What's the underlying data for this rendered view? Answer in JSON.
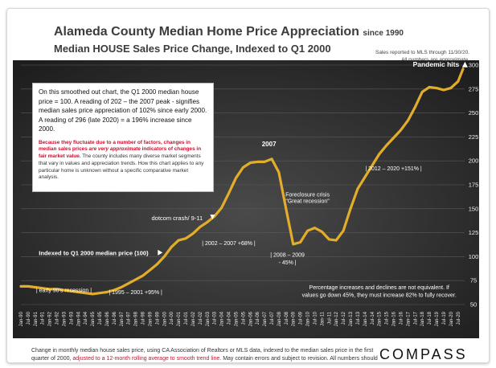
{
  "header": {
    "title": "Alameda County Median Home Price Appreciation",
    "title_suffix": "since 1990",
    "subtitle": "Median HOUSE Sales Price Change, Indexed to Q1 2000",
    "note_line1": "Sales reported to MLS through 11/30/20.",
    "note_line2": "All numbers are approximate."
  },
  "info_box": {
    "para1": "On this smoothed out chart, the Q1 2000 median house price = 100. A reading of 202 – the 2007 peak - signifies median sales price appreciation of 102% since early 2000.  A reading of 296 (late 2020) = a 196% increase since 2000.",
    "para2_red": "Because they fluctuate due to a number of factors, changes in median sales prices",
    "para2_red_italic": "are very approximate",
    "para2_red_tail": "indicators of changes in fair market value.",
    "para2_rest": "The county includes many diverse market segments that vary in values and appreciation trends. How this chart applies to any particular home is unknown without a specific comparative market analysis."
  },
  "footer": {
    "text_a": "Change in monthly median house sales price, using CA Association of Realtors or MLS data, indexed to the median sales price in the first quarter of 2000,",
    "text_red": "adjusted to a 12-month rolling average to smooth trend line.",
    "text_b": "May contain errors and subject to revision. All numbers should be considered very approximate."
  },
  "brand": {
    "logo_text": "COMPASS"
  },
  "colors": {
    "line": "#e2ad2a",
    "background": "#2f2f2f",
    "accent_red": "#c8102e"
  },
  "chart_data": {
    "type": "line",
    "title": "Alameda County Median Home Price Appreciation since 1990",
    "subtitle": "Median HOUSE Sales Price Change, Indexed to Q1 2000",
    "ylabel": "",
    "xlabel": "",
    "ylim": [
      50,
      300
    ],
    "y_ticks": [
      50,
      75,
      100,
      125,
      150,
      175,
      200,
      225,
      250,
      275,
      300
    ],
    "x_tick_labels": [
      "Jan-90",
      "Jul-90",
      "Jan-91",
      "Jul-91",
      "Jan-92",
      "Jul-92",
      "Jan-93",
      "Jul-93",
      "Jan-94",
      "Jul-94",
      "Jan-95",
      "Jul-95",
      "Jan-96",
      "Jul-96",
      "Jan-97",
      "Jul-97",
      "Jan-98",
      "Jul-98",
      "Jan-99",
      "Jul-99",
      "Jan-00",
      "Jul-00",
      "Jan-01",
      "Jul-01",
      "Jan-02",
      "Jul-02",
      "Jan-03",
      "Jul-03",
      "Jan-04",
      "Jul-04",
      "Jan-05",
      "Jul-05",
      "Jan-06",
      "Jul-06",
      "Jan-07",
      "Jul-07",
      "Jan-08",
      "Jul-08",
      "Jan-09",
      "Jul-09",
      "Jan-10",
      "Jul-10",
      "Jan-11",
      "Jul-11",
      "Jan-12",
      "Jul-12",
      "Jan-13",
      "Jul-13",
      "Jan-14",
      "Jul-14",
      "Jan-15",
      "Jul-15",
      "Jan-16",
      "Jul-16",
      "Jan-17",
      "Jul-17",
      "Jan-18",
      "Jul-18",
      "Jan-19",
      "Jul-19",
      "Jan-20",
      "Jul-20"
    ],
    "series": [
      {
        "name": "Median house price index (Q1 2000 = 100)",
        "x": [
          1990,
          1990.5,
          1991,
          1991.5,
          1992,
          1992.5,
          1993,
          1993.5,
          1994,
          1994.5,
          1995,
          1995.5,
          1996,
          1996.5,
          1997,
          1997.5,
          1998,
          1998.5,
          1999,
          1999.5,
          2000,
          2000.5,
          2001,
          2001.5,
          2002,
          2002.5,
          2003,
          2003.5,
          2004,
          2004.5,
          2005,
          2005.5,
          2006,
          2006.5,
          2007,
          2007.5,
          2008,
          2008.5,
          2009,
          2009.5,
          2010,
          2010.5,
          2011,
          2011.5,
          2012,
          2012.5,
          2013,
          2013.5,
          2014,
          2014.5,
          2015,
          2015.5,
          2016,
          2016.5,
          2017,
          2017.5,
          2018,
          2018.5,
          2019,
          2019.5,
          2020,
          2020.5,
          2020.85
        ],
        "values": [
          69,
          69,
          68,
          67,
          66,
          66,
          65,
          64,
          63,
          62,
          61,
          62,
          63,
          65,
          68,
          72,
          76,
          80,
          86,
          92,
          100,
          110,
          117,
          119,
          124,
          131,
          136,
          142,
          151,
          166,
          182,
          193,
          198,
          199,
          199,
          202,
          188,
          150,
          113,
          115,
          127,
          130,
          126,
          118,
          117,
          127,
          150,
          171,
          183,
          195,
          207,
          216,
          224,
          232,
          242,
          256,
          272,
          277,
          276,
          274,
          276,
          283,
          296
        ]
      }
    ],
    "annotations": [
      {
        "text": "2007",
        "x": 2007.2,
        "y": 202
      },
      {
        "text": "Pandemic hits",
        "x": 2020.2,
        "y": 275
      },
      {
        "text": "dotcom crash/ 9-11",
        "x": 2000.9,
        "y": 138
      },
      {
        "text": "Indexed to Q1 2000 median price (100)",
        "x": 2000,
        "y": 100
      },
      {
        "text": "| 2002 – 2007 +68% |",
        "x": 2004.5,
        "y": 112
      },
      {
        "text": "| 2012 – 2020 +151% |",
        "x": 2016,
        "y": 190
      },
      {
        "text": "Foreclosure crisis",
        "x": 2010,
        "y": 163
      },
      {
        "text": "\"Great recession\"",
        "x": 2010,
        "y": 156
      },
      {
        "text": "| 2008 – 2009",
        "x": 2008.6,
        "y": 100
      },
      {
        "text": "- 45% |",
        "x": 2008.6,
        "y": 92
      },
      {
        "text": "| early 90's recession |",
        "x": 1993,
        "y": 63
      },
      {
        "text": "| 1995 – 2001 +95% |",
        "x": 1998,
        "y": 61
      },
      {
        "text": "Percentage increases and declines are not equivalent. If",
        "x": 2015,
        "y": 66
      },
      {
        "text": "values go down 45%, they must increase 82% to fully recover.",
        "x": 2015,
        "y": 58
      }
    ]
  }
}
